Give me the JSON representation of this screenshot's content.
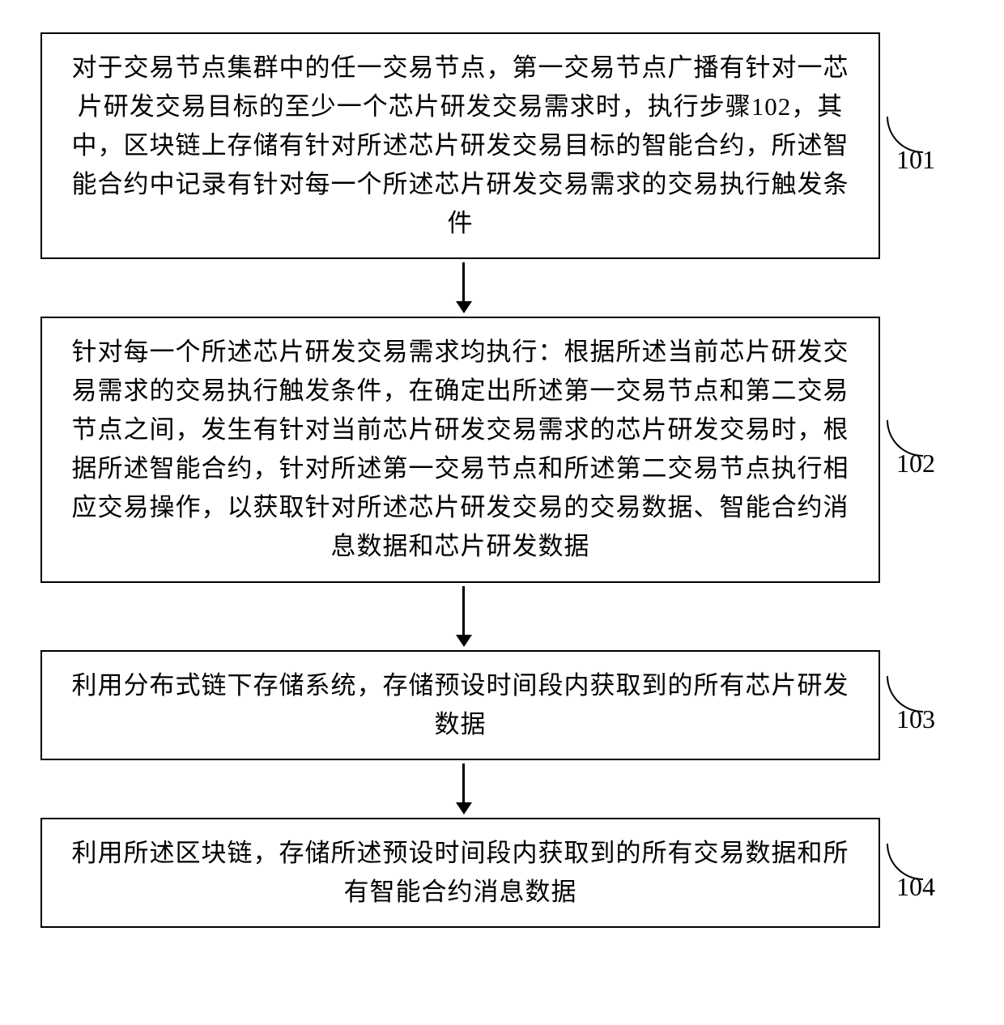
{
  "flowchart": {
    "box_border_color": "#000000",
    "box_border_width": 2,
    "background_color": "#ffffff",
    "text_color": "#000000",
    "font_family": "SimSun",
    "font_size_pt": 23,
    "arrow_color": "#000000",
    "arrow_line_width": 2.5,
    "arrow_head_width": 20,
    "arrow_head_height": 15,
    "label_curve_radius": 45,
    "steps": [
      {
        "id": "101",
        "label": "101",
        "text": "对于交易节点集群中的任一交易节点，第一交易节点广播有针对一芯片研发交易目标的至少一个芯片研发交易需求时，执行步骤102，其中，区块链上存储有针对所述芯片研发交易目标的智能合约，所述智能合约中记录有针对每一个所述芯片研发交易需求的交易执行触发条件",
        "arrow_after_height": 48
      },
      {
        "id": "102",
        "label": "102",
        "text": "针对每一个所述芯片研发交易需求均执行：根据所述当前芯片研发交易需求的交易执行触发条件，在确定出所述第一交易节点和第二交易节点之间，发生有针对当前芯片研发交易需求的芯片研发交易时，根据所述智能合约，针对所述第一交易节点和所述第二交易节点执行相应交易操作，以获取针对所述芯片研发交易的交易数据、智能合约消息数据和芯片研发数据",
        "arrow_after_height": 60
      },
      {
        "id": "103",
        "label": "103",
        "text": "利用分布式链下存储系统，存储预设时间段内获取到的所有芯片研发数据",
        "arrow_after_height": 48
      },
      {
        "id": "104",
        "label": "104",
        "text": "利用所述区块链，存储所述预设时间段内获取到的所有交易数据和所有智能合约消息数据",
        "arrow_after_height": 0
      }
    ]
  }
}
